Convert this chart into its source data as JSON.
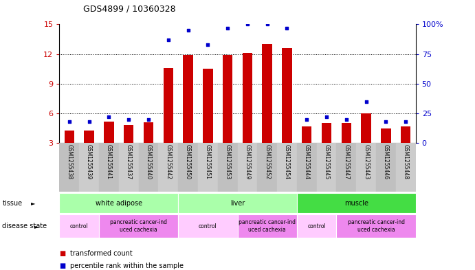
{
  "title": "GDS4899 / 10360328",
  "samples": [
    "GSM1255438",
    "GSM1255439",
    "GSM1255441",
    "GSM1255437",
    "GSM1255440",
    "GSM1255442",
    "GSM1255450",
    "GSM1255451",
    "GSM1255453",
    "GSM1255449",
    "GSM1255452",
    "GSM1255454",
    "GSM1255444",
    "GSM1255445",
    "GSM1255447",
    "GSM1255443",
    "GSM1255446",
    "GSM1255448"
  ],
  "red_bars": [
    4.3,
    4.3,
    5.2,
    4.8,
    5.1,
    10.6,
    11.9,
    10.5,
    11.9,
    12.1,
    13.0,
    12.6,
    4.7,
    5.0,
    5.0,
    6.0,
    4.5,
    4.7
  ],
  "blue_dots": [
    18,
    18,
    22,
    20,
    20,
    87,
    95,
    83,
    97,
    100,
    100,
    97,
    20,
    22,
    20,
    35,
    18,
    18
  ],
  "ylim_left": [
    3,
    15
  ],
  "ylim_right": [
    0,
    100
  ],
  "yticks_left": [
    3,
    6,
    9,
    12,
    15
  ],
  "yticks_right": [
    0,
    25,
    50,
    75,
    100
  ],
  "bar_color": "#cc0000",
  "dot_color": "#0000cc",
  "tissue_groups": [
    {
      "label": "white adipose",
      "start": 0,
      "end": 5,
      "color": "#aaffaa"
    },
    {
      "label": "liver",
      "start": 6,
      "end": 11,
      "color": "#aaffaa"
    },
    {
      "label": "muscle",
      "start": 12,
      "end": 17,
      "color": "#44dd44"
    }
  ],
  "disease_groups": [
    {
      "label": "control",
      "start": 0,
      "end": 1,
      "color": "#ffccff"
    },
    {
      "label": "pancreatic cancer-ind\nuced cachexia",
      "start": 2,
      "end": 5,
      "color": "#ee88ee"
    },
    {
      "label": "control",
      "start": 6,
      "end": 8,
      "color": "#ffccff"
    },
    {
      "label": "pancreatic cancer-ind\nuced cachexia",
      "start": 9,
      "end": 11,
      "color": "#ee88ee"
    },
    {
      "label": "control",
      "start": 12,
      "end": 13,
      "color": "#ffccff"
    },
    {
      "label": "pancreatic cancer-ind\nuced cachexia",
      "start": 14,
      "end": 17,
      "color": "#ee88ee"
    }
  ],
  "bar_width": 0.5,
  "background_color": "#ffffff",
  "left_axis_color": "#cc0000",
  "right_axis_color": "#0000cc",
  "label_bg_color": "#cccccc",
  "legend_red_label": "transformed count",
  "legend_blue_label": "percentile rank within the sample"
}
